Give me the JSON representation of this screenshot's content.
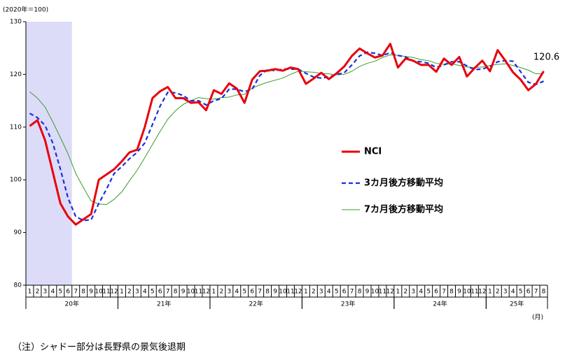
{
  "chart_data": {
    "type": "line",
    "unit_label": "(2020年＝100)",
    "note": "（注）シャドー部分は長野県の景気後退期",
    "x_unit": "(月)",
    "categories": [
      "1",
      "2",
      "3",
      "4",
      "5",
      "6",
      "7",
      "8",
      "9",
      "10",
      "11",
      "12",
      "1",
      "2",
      "3",
      "4",
      "5",
      "6",
      "7",
      "8",
      "9",
      "10",
      "11",
      "12",
      "1",
      "2",
      "3",
      "4",
      "5",
      "6",
      "7",
      "8",
      "9",
      "10",
      "11",
      "12",
      "1",
      "2",
      "3",
      "4",
      "5",
      "6",
      "7",
      "8",
      "9",
      "10",
      "11",
      "12",
      "1",
      "2",
      "3",
      "4",
      "5",
      "6",
      "7",
      "8",
      "9",
      "10",
      "11",
      "12",
      "1",
      "2",
      "3",
      "4",
      "5",
      "6",
      "7",
      "8"
    ],
    "year_labels": [
      "20年",
      "21年",
      "22年",
      "23年",
      "24年",
      "25年"
    ],
    "shade_range": [
      0,
      5
    ],
    "shade_color": "#dcdcf8",
    "ylim": [
      80,
      130
    ],
    "yticks": [
      80,
      90,
      100,
      110,
      120,
      130
    ],
    "legend": "right",
    "series": [
      {
        "name": "NCI",
        "color": "#e8000b",
        "width": 3,
        "dash": false,
        "values": [
          110.2,
          111.3,
          107.5,
          101.5,
          95.5,
          93,
          91.5,
          92.5,
          93.5,
          100,
          101,
          102,
          103.5,
          105.2,
          105.7,
          110,
          115.5,
          116.8,
          117.6,
          115.5,
          115.5,
          114.6,
          114.7,
          113.2,
          117,
          116.3,
          118.3,
          117.3,
          114.6,
          119,
          120.6,
          120.7,
          121,
          120.7,
          121.3,
          121,
          118.2,
          119.2,
          120.3,
          119.1,
          120.2,
          121.5,
          123.5,
          124.9,
          124,
          123.2,
          123.6,
          125.8,
          121.3,
          123,
          122.6,
          121.8,
          121.8,
          120.5,
          123,
          121.8,
          123.3,
          119.6,
          121.2,
          122.6,
          120.6,
          124.6,
          122.6,
          120.4,
          119,
          117,
          118.2,
          120.6
        ],
        "value_labels": [
          null,
          null,
          null,
          null,
          null,
          null,
          null,
          null,
          null,
          null,
          null,
          null,
          null,
          null,
          null,
          null,
          null,
          null,
          null,
          null,
          null,
          null,
          null,
          null,
          null,
          null,
          null,
          null,
          null,
          null,
          null,
          null,
          null,
          null,
          null,
          null,
          null,
          null,
          null,
          null,
          null,
          null,
          null,
          null,
          null,
          null,
          null,
          null,
          null,
          null,
          null,
          null,
          null,
          null,
          null,
          null,
          null,
          null,
          null,
          null,
          null,
          null,
          null,
          null,
          null,
          null,
          null,
          "120.6"
        ]
      },
      {
        "name": "3カ月後方移動平均",
        "color": "#1a2ee0",
        "width": 2.2,
        "dash": true,
        "values": [
          112.6,
          111.8,
          110.3,
          107,
          102,
          96.5,
          93,
          92.3,
          92.4,
          95.5,
          98.2,
          101.2,
          102.5,
          104,
          105.2,
          107,
          110.5,
          114,
          116.6,
          116.5,
          116,
          115,
          115,
          114.2,
          115,
          115.4,
          117.2,
          117.2,
          116.7,
          117.2,
          119.8,
          120.9,
          120.7,
          121,
          121,
          121,
          120.2,
          119.5,
          119.3,
          119.5,
          120,
          120.3,
          121.8,
          123.5,
          124.2,
          124,
          123.6,
          124.1,
          123.6,
          123.3,
          122.5,
          122.4,
          122.1,
          121.3,
          121.8,
          122.4,
          122.4,
          121.6,
          120.9,
          121,
          121.5,
          122.4,
          122.6,
          122.5,
          120.5,
          118.5,
          118.1,
          118.7
        ]
      },
      {
        "name": "7カ月後方移動平均",
        "color": "#3c9a2e",
        "width": 1,
        "dash": false,
        "values": [
          116.7,
          115.5,
          113.8,
          111,
          108,
          104.9,
          101.2,
          98.5,
          96,
          95.4,
          95.3,
          96.3,
          97.7,
          99.8,
          101.8,
          104.2,
          106.7,
          109.2,
          111.5,
          113.1,
          114.3,
          115,
          115.6,
          115.4,
          115.3,
          115.6,
          115.7,
          116.1,
          116.2,
          117.4,
          118,
          118.5,
          118.9,
          119.3,
          120,
          120.6,
          120.5,
          120.4,
          120.2,
          120.1,
          119.9,
          120,
          120.6,
          121.5,
          122.1,
          122.5,
          123.2,
          123.7,
          123.6,
          123.4,
          123.2,
          122.8,
          122.6,
          122.1,
          121.9,
          122,
          121.7,
          121.4,
          121.3,
          121.4,
          121.7,
          121.9,
          122,
          121.7,
          121.3,
          120.8,
          120.1,
          120.2
        ]
      }
    ]
  }
}
